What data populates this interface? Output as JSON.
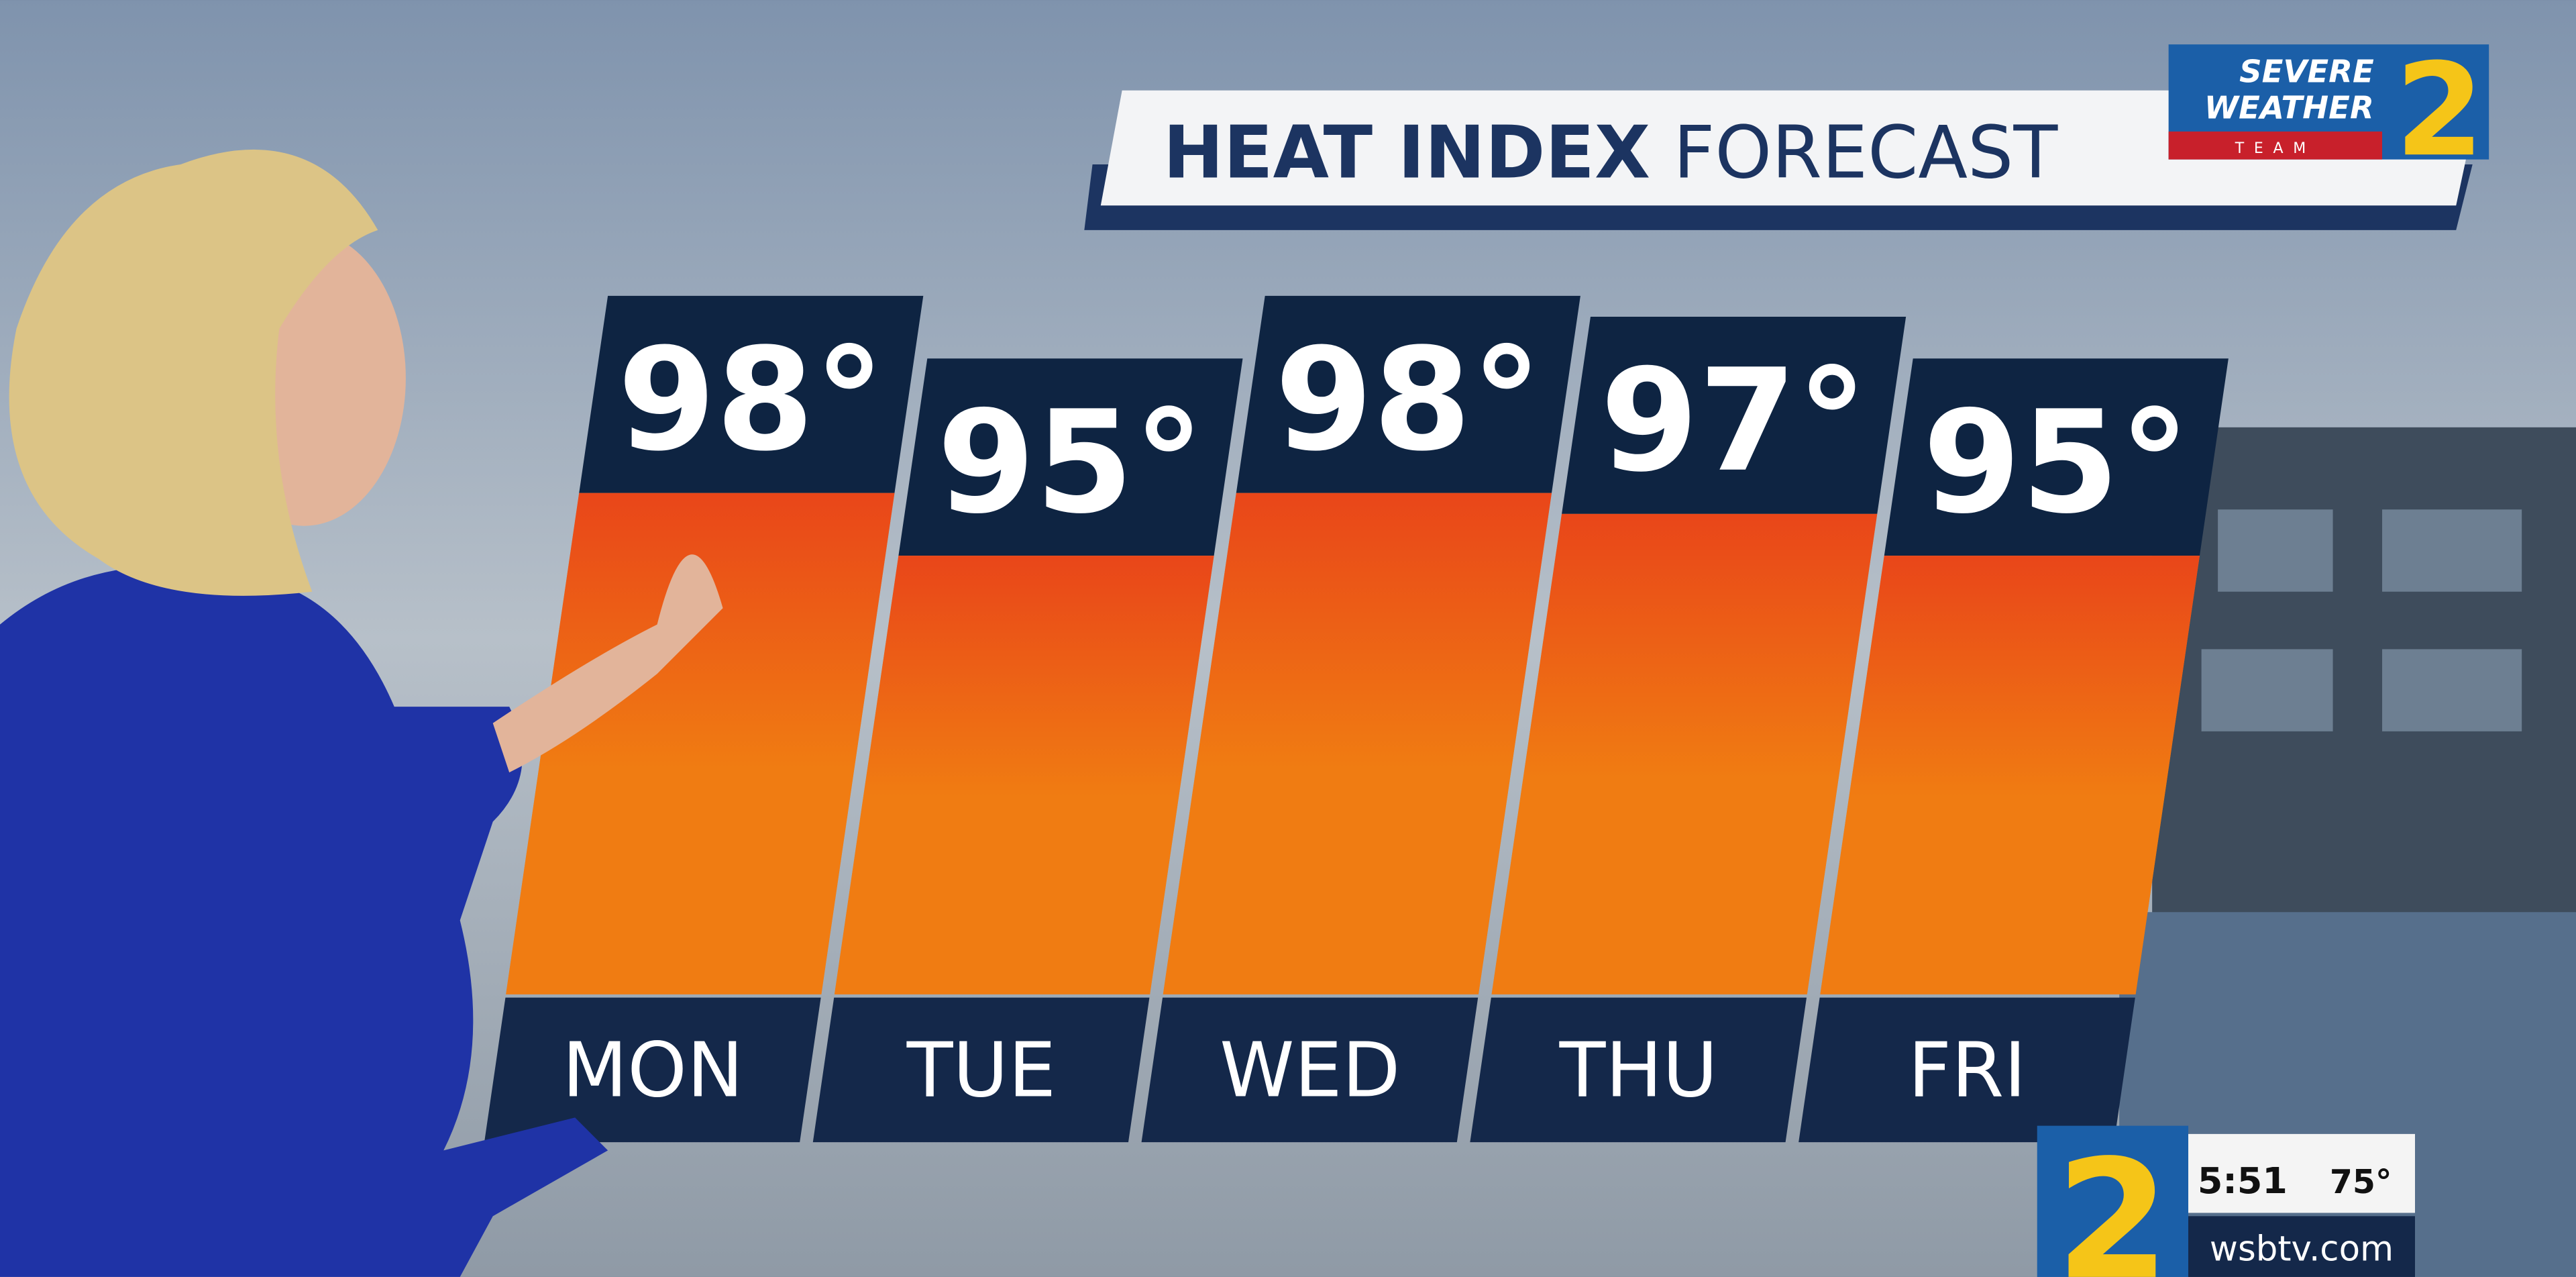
{
  "chart_data": {
    "type": "bar",
    "title": "HEAT INDEX",
    "subtitle": "FORECAST",
    "categories": [
      "MON",
      "TUE",
      "WED",
      "THU",
      "FRI"
    ],
    "values": [
      98,
      95,
      98,
      97,
      95
    ],
    "value_labels": [
      "98°",
      "95°",
      "98°",
      "97°",
      "95°"
    ],
    "color": "#f07c12"
  },
  "logo": {
    "line1": "SEVERE",
    "line2": "WEATHER",
    "line3": "TEAM",
    "number": "2"
  },
  "ticker": {
    "number": "2",
    "time": "5:51",
    "temperature": "75°",
    "website": "wsbtv.com"
  }
}
